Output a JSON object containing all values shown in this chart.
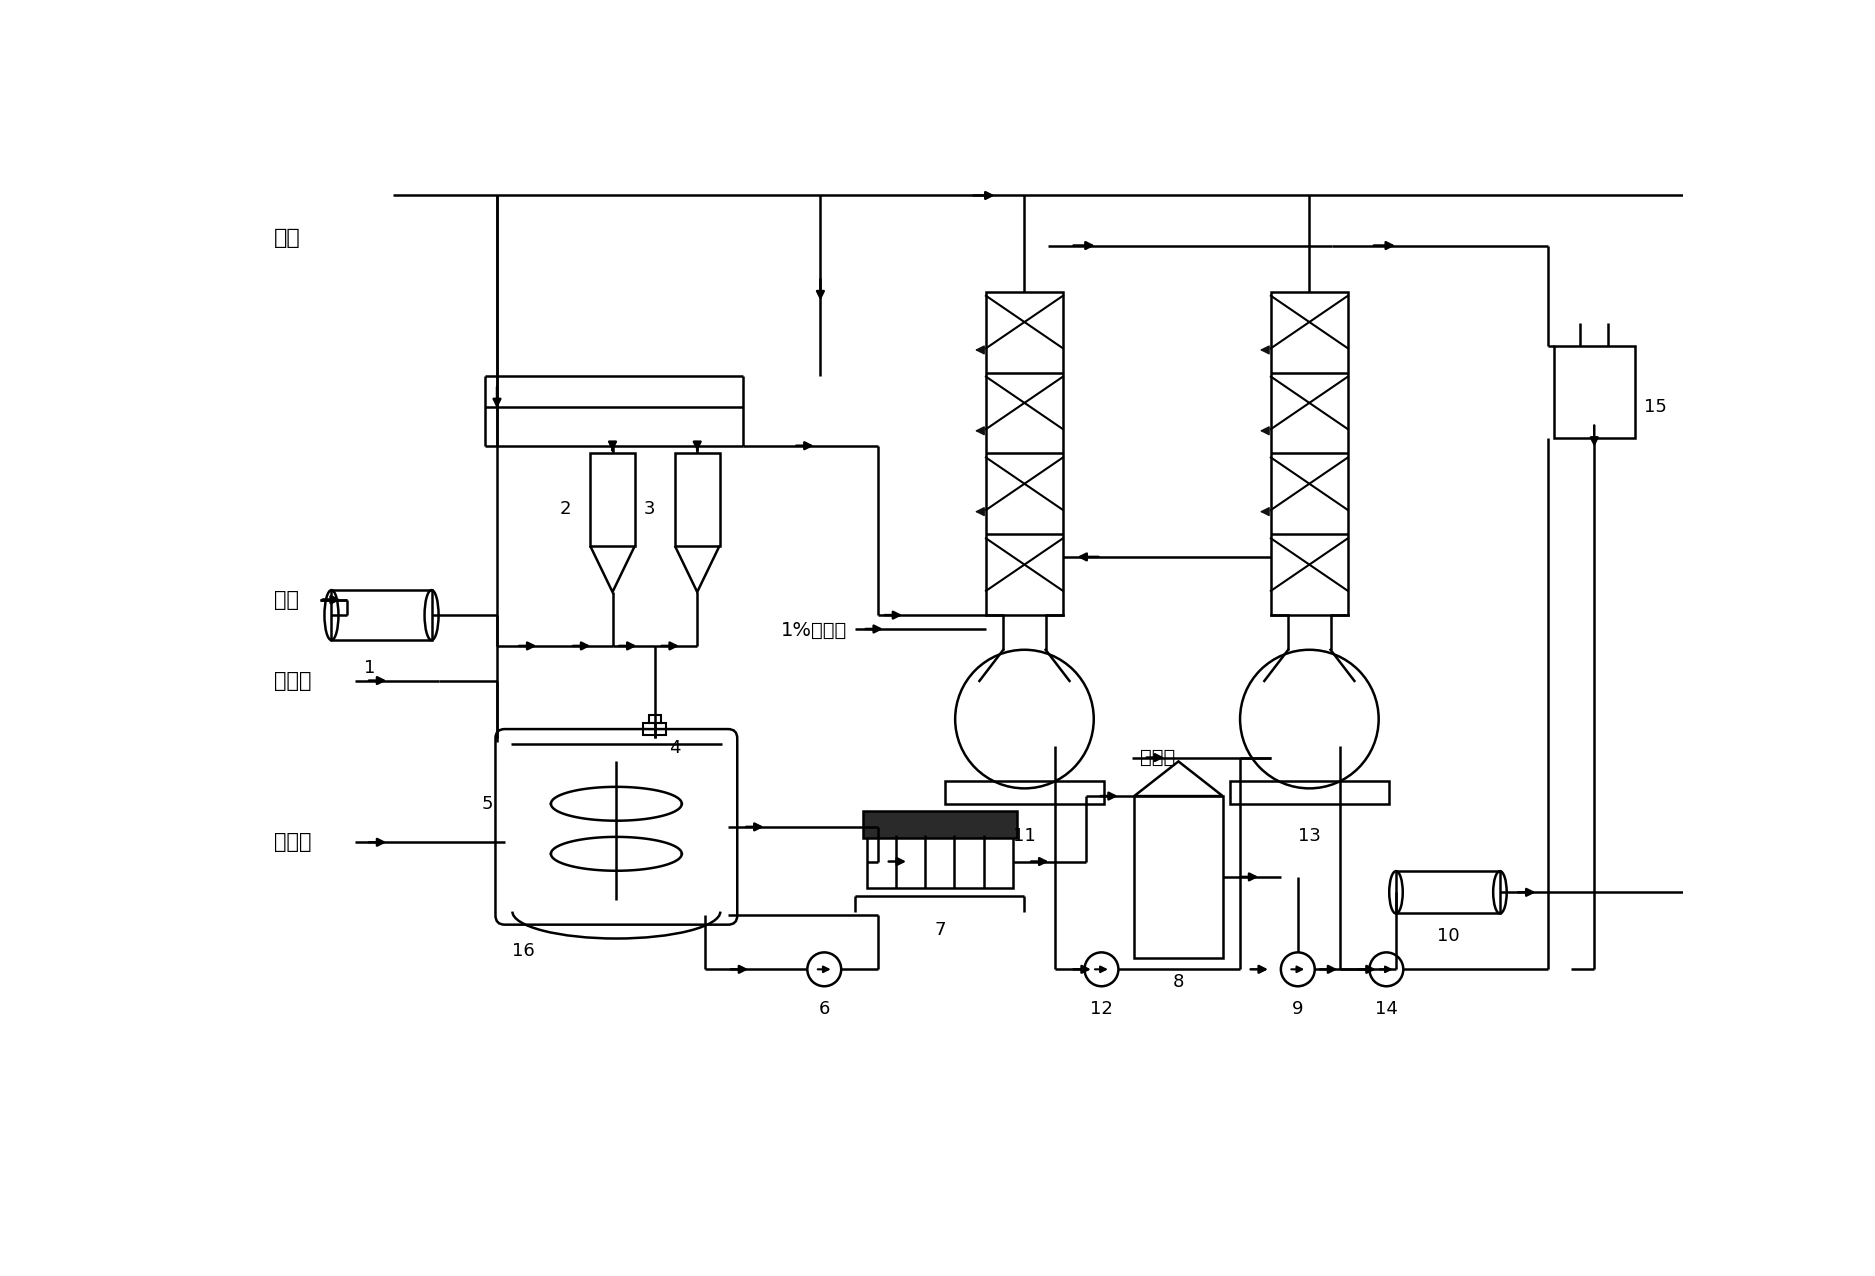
{
  "bg": "#ffffff",
  "lc": "#000000",
  "lw": 1.8,
  "figsize": [
    18.75,
    12.76
  ],
  "dpi": 100,
  "labels": {
    "nitrogen": "氮气",
    "slurry": "浆渣",
    "hydrolysate": "水解液",
    "cooling_water": "冷却水",
    "dilute_hcl": "1%稀盐酸",
    "conc_hcl": "浓盐酸"
  }
}
